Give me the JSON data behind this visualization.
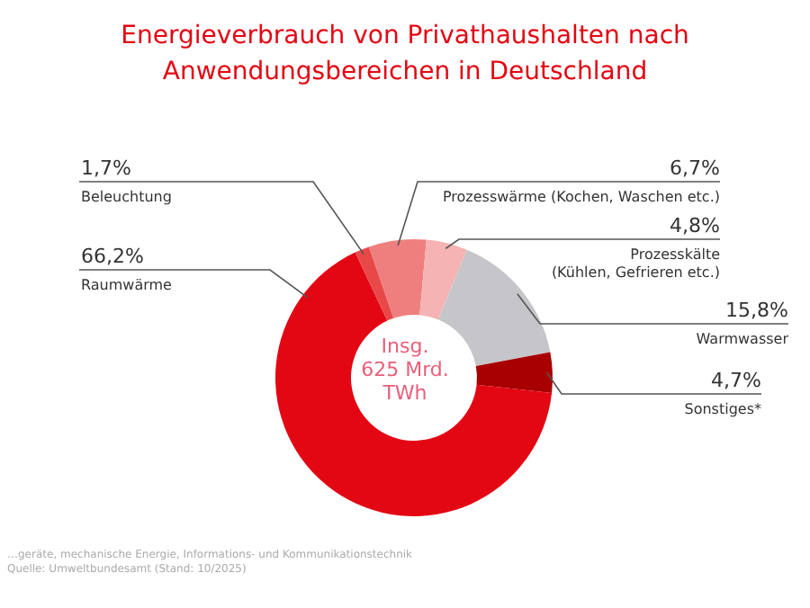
{
  "chart_data": {
    "type": "donut",
    "title": "Energieverbrauch von Privathaushalten nach Anwendungsbereichen in Deutschland",
    "categories": [
      "Prozesswärme (Kochen, Waschen etc.)",
      "Prozesskälte (Kühlen, Gefrieren etc.)",
      "Warmwasser",
      "Sonstiges*",
      "Raumwärme",
      "Beleuchtung"
    ],
    "values": [
      6.7,
      4.8,
      15.8,
      4.7,
      66.2,
      1.7
    ],
    "value_labels": [
      "6,7%",
      "4,8%",
      "15,8%",
      "4,7%",
      "66,2%",
      "1,7%"
    ],
    "colors": [
      "#ef7f7f",
      "#f5b3b3",
      "#c6c6ca",
      "#a80000",
      "#e30613",
      "#e94848"
    ],
    "annotations": [
      "Insg. 625 Mrd. TWh",
      "…geräte, mechanische Energie, Informations- und Kommunikationstechnik",
      "Quelle: Umweltbundesamt (Stand: 10/2025)"
    ]
  }
}
